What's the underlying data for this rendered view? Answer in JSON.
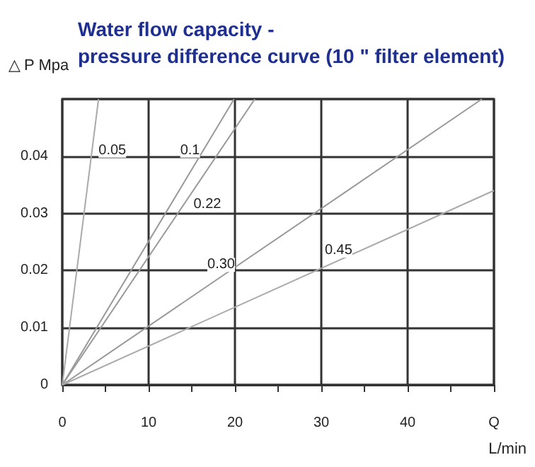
{
  "chart_data": {
    "type": "line",
    "title": "Water flow capacity -\npressure difference curve (10 \" filter element)",
    "xlabel": "L/min",
    "ylabel": "△ P Mpa",
    "xlim": [
      0,
      50
    ],
    "xticks": [
      0,
      10,
      20,
      30,
      40,
      {
        "value": 50,
        "label": "Q"
      }
    ],
    "ylim": [
      0,
      0.05
    ],
    "yticks": [
      0,
      0.01,
      0.02,
      0.03,
      0.04,
      {
        "value": 0.05,
        "label": null
      }
    ],
    "grid": true,
    "marker": "none",
    "line_style": "solid",
    "series": [
      {
        "color": "#aaaaaa",
        "x": [
          0,
          4.2
        ],
        "values": [
          0,
          0.05
        ]
      },
      {
        "color": "#999999",
        "x": [
          0,
          19.9
        ],
        "values": [
          0,
          0.05
        ]
      },
      {
        "color": "#999999",
        "x": [
          0,
          22.3
        ],
        "values": [
          0,
          0.05
        ]
      },
      {
        "color": "#999999",
        "x": [
          0,
          48.6
        ],
        "values": [
          0,
          0.05
        ]
      },
      {
        "color": "#aaaaaa",
        "x": [
          0,
          50
        ],
        "values": [
          0,
          0.034
        ]
      }
    ],
    "annotations": [
      {
        "text": "0.05",
        "x": 5.8,
        "y": 0.041
      },
      {
        "text": "0.1",
        "x": 14.8,
        "y": 0.041
      },
      {
        "text": "0.22",
        "x": 16.8,
        "y": 0.0315
      },
      {
        "text": "0.30",
        "x": 18.4,
        "y": 0.021
      },
      {
        "text": "0.45",
        "x": 32,
        "y": 0.0235
      }
    ]
  }
}
